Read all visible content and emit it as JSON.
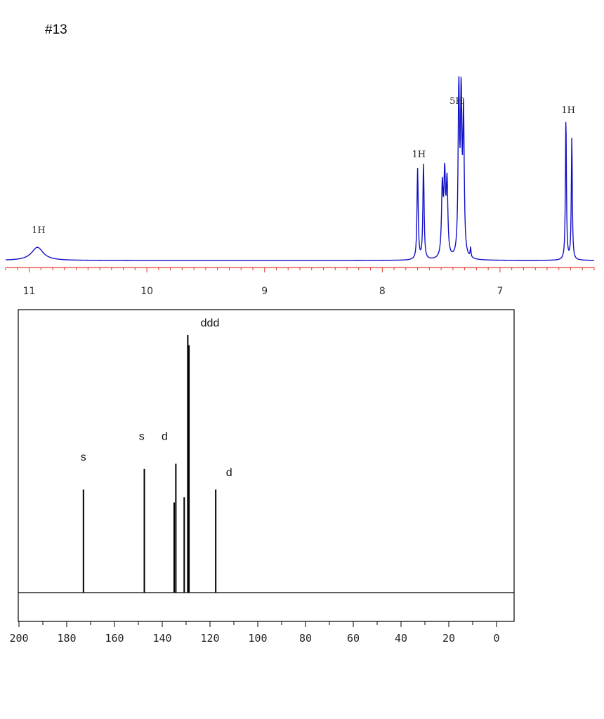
{
  "title": "#13",
  "chart_data": [
    {
      "type": "line",
      "xlim": [
        11.2,
        6.2
      ],
      "colors": {
        "trace": "#1010c8",
        "axis": "#e03a2a"
      },
      "x_tick_labels": [
        "11",
        "10",
        "9",
        "8",
        "7"
      ],
      "x_ticks": [
        11,
        10,
        9,
        8,
        7
      ],
      "peak_labels": [
        {
          "text": "1H",
          "x": 10.92
        },
        {
          "text": "1H",
          "x": 7.69
        },
        {
          "text": "5H",
          "x": 7.37
        },
        {
          "text": "1H",
          "x": 6.42
        }
      ],
      "peaks": [
        {
          "x": 10.93,
          "height": 0.08,
          "width": 0.06
        },
        {
          "x": 7.7,
          "height": 0.55,
          "width": 0.006
        },
        {
          "x": 7.65,
          "height": 0.58,
          "width": 0.006
        },
        {
          "x": 7.49,
          "height": 0.42,
          "width": 0.008
        },
        {
          "x": 7.47,
          "height": 0.47,
          "width": 0.008
        },
        {
          "x": 7.45,
          "height": 0.44,
          "width": 0.008
        },
        {
          "x": 7.35,
          "height": 1.0,
          "width": 0.007
        },
        {
          "x": 7.33,
          "height": 0.92,
          "width": 0.007
        },
        {
          "x": 7.31,
          "height": 0.85,
          "width": 0.007
        },
        {
          "x": 7.25,
          "height": 0.06,
          "width": 0.004
        },
        {
          "x": 6.44,
          "height": 0.87,
          "width": 0.005
        },
        {
          "x": 6.39,
          "height": 0.74,
          "width": 0.005
        }
      ]
    },
    {
      "type": "bar",
      "xlim": [
        200,
        -5
      ],
      "x_tick_labels": [
        "200",
        "180",
        "160",
        "140",
        "120",
        "100",
        "80",
        "60",
        "40",
        "20",
        "0"
      ],
      "x_ticks": [
        200,
        180,
        160,
        140,
        120,
        100,
        80,
        60,
        40,
        20,
        0
      ],
      "peaks": [
        {
          "x": 173.0,
          "height": 0.4
        },
        {
          "x": 147.5,
          "height": 0.48
        },
        {
          "x": 135.0,
          "height": 0.35
        },
        {
          "x": 134.3,
          "height": 0.5
        },
        {
          "x": 130.8,
          "height": 0.37
        },
        {
          "x": 129.3,
          "height": 1.0
        },
        {
          "x": 128.8,
          "height": 0.96
        },
        {
          "x": 117.6,
          "height": 0.4
        }
      ],
      "peak_labels": [
        {
          "text": "s",
          "x": 173.0,
          "level": 0.48
        },
        {
          "text": "s",
          "x": 148.0,
          "level": 0.56
        },
        {
          "text": "d",
          "x": 139.0,
          "level": 0.56
        },
        {
          "text": "ddd",
          "x": 120.0,
          "level": 1.0
        },
        {
          "text": "d",
          "x": 112.0,
          "level": 0.42
        }
      ]
    }
  ]
}
